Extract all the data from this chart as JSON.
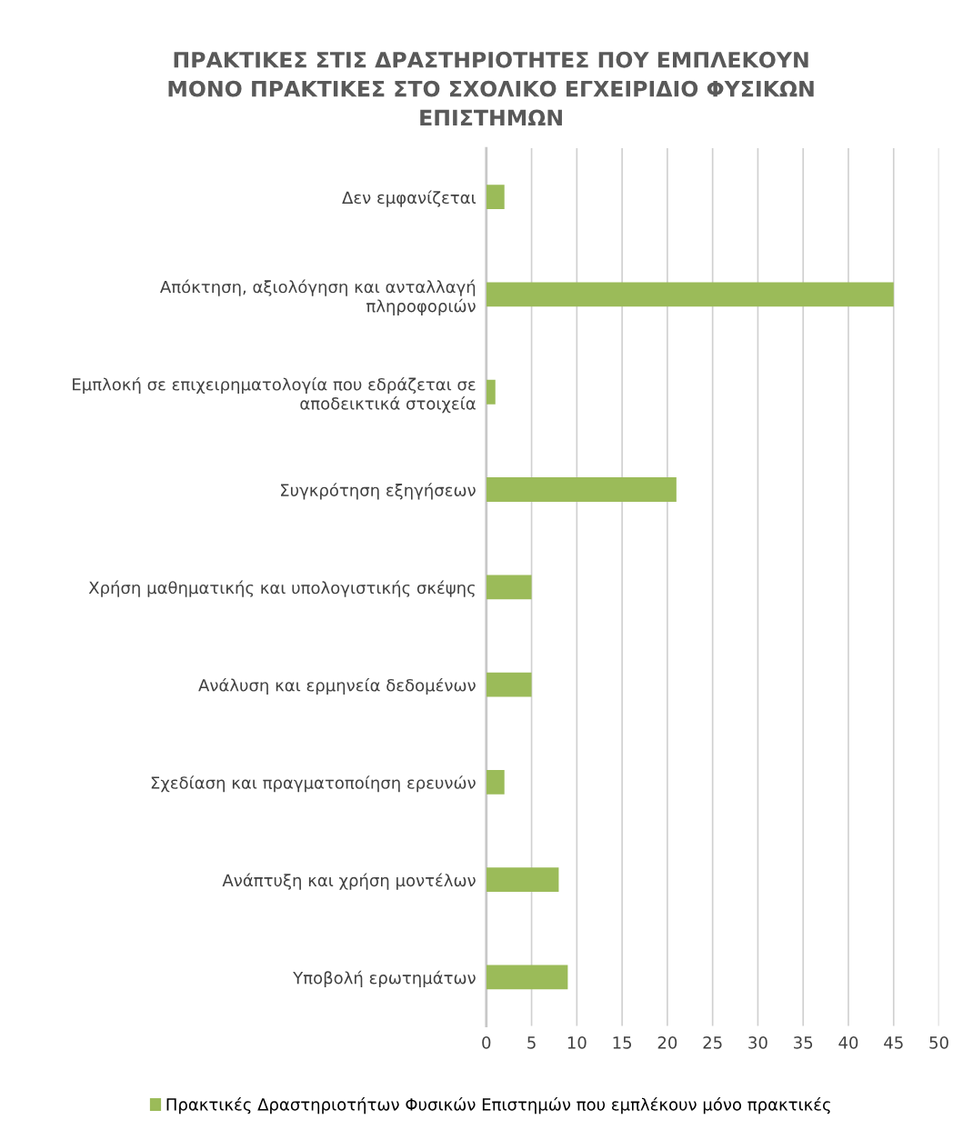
{
  "chart_data": {
    "type": "bar",
    "orientation": "horizontal",
    "title": "ΠΡΑΚΤΙΚΕΣ ΣΤΙΣ ΔΡΑΣΤΗΡΙΟΤΗΤΕΣ ΠΟΥ ΕΜΠΛΕΚΟΥΝ\nΜΟΝΟ ΠΡΑΚΤΙΚΕΣ ΣΤΟ ΣΧΟΛΙΚΟ ΕΓΧΕΙΡΙΔΙΟ ΦΥΣΙΚΩΝ\nΕΠΙΣΤΗΜΩΝ",
    "categories": [
      "Δεν εμφανίζεται",
      "Απόκτηση, αξιολόγηση και ανταλλαγή\nπληροφοριών",
      "Εμπλοκή σε επιχειρηματολογία που εδράζεται σε\nαποδεικτικά στοιχεία",
      "Συγκρότηση εξηγήσεων",
      "Χρήση μαθηματικής και υπολογιστικής σκέψης",
      "Ανάλυση και ερμηνεία δεδομένων",
      "Σχεδίαση και πραγματοποίηση ερευνών",
      "Ανάπτυξη και χρήση μοντέλων",
      "Υποβολή ερωτημάτων"
    ],
    "series": [
      {
        "name": "Πρακτικές Δραστηριοτήτων Φυσικών Επιστημών που εμπλέκουν μόνο πρακτικές",
        "color": "#9bbb59",
        "values": [
          2,
          45,
          1,
          21,
          5,
          5,
          2,
          8,
          9
        ]
      }
    ],
    "xlim": [
      0,
      50
    ],
    "xticks": [
      0,
      5,
      10,
      15,
      20,
      25,
      30,
      35,
      40,
      45,
      50
    ],
    "grid": "x",
    "legend": "bottom"
  }
}
